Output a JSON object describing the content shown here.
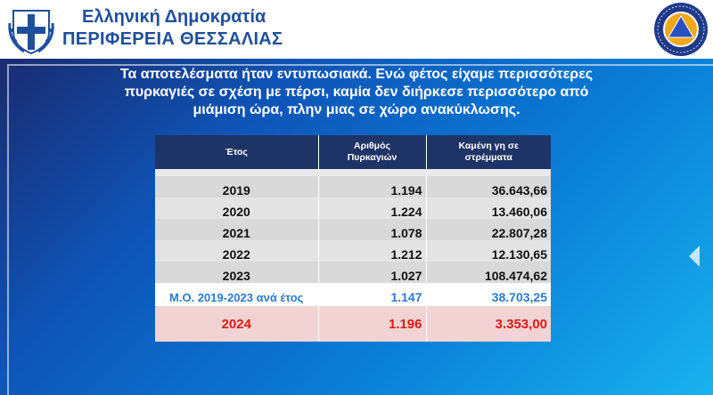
{
  "header": {
    "line1": "Ελληνική Δημοκρατία",
    "line2": "ΠΕΡΙΦΕΡΕΙΑ ΘΕΣΣΑΛΙΑΣ",
    "seal_icon": "civil-protection-seal-icon",
    "emblem_icon": "greek-coat-of-arms-icon",
    "title_color": "#1f4f9c"
  },
  "lead": {
    "line1": "Τα αποτελέσματα ήταν εντυπωσιακά. Ενώ φέτος είχαμε περισσότερες",
    "line2": "πυρκαγιές σε σχέση με πέρσι, καμία δεν διήρκεσε περισσότερο από",
    "line3": "μιάμιση ώρα, πλην μιας σε χώρο ανακύκλωσης."
  },
  "table": {
    "headers": {
      "year": "Έτος",
      "fires_1": "Αριθμός",
      "fires_2": "Πυρκαγιών",
      "burned_1": "Καμένη γη σε",
      "burned_2": "στρέμματα"
    },
    "rows": [
      {
        "year": "2019",
        "fires": "1.194",
        "burned": "36.643,66"
      },
      {
        "year": "2020",
        "fires": "1.224",
        "burned": "13.460,06"
      },
      {
        "year": "2021",
        "fires": "1.078",
        "burned": "22.807,28"
      },
      {
        "year": "2022",
        "fires": "1.212",
        "burned": "12.130,65"
      },
      {
        "year": "2023",
        "fires": "1.027",
        "burned": "108.474,62"
      }
    ],
    "average": {
      "label": "Μ.Ο. 2019-2023 ανά έτος",
      "fires": "1.147",
      "burned": "38.703,25"
    },
    "current": {
      "year": "2024",
      "fires": "1.196",
      "burned": "3.353,00"
    },
    "colors": {
      "header_bg": "#1f3466",
      "average_text": "#2b7ad0",
      "current_text": "#e01818",
      "current_bg": "#f2d3d3"
    }
  }
}
